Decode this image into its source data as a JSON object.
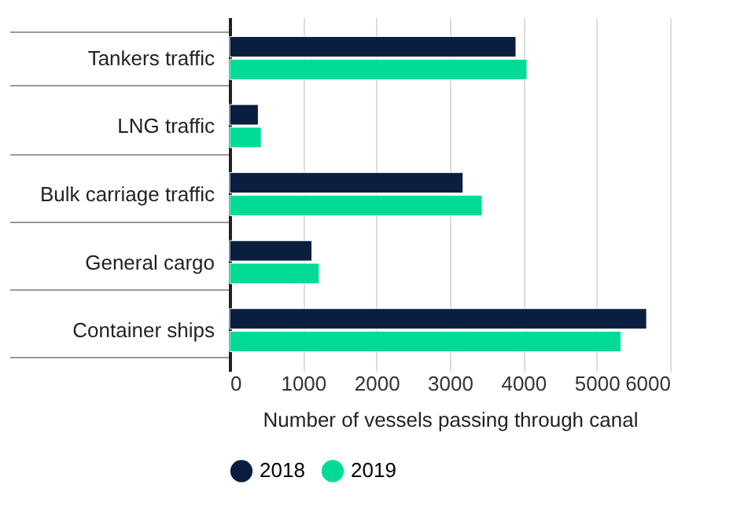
{
  "chart_data": {
    "type": "bar",
    "orientation": "horizontal",
    "categories": [
      "Tankers traffic",
      "LNG traffic",
      "Bulk carriage traffic",
      "General cargo",
      "Container ships"
    ],
    "series": [
      {
        "name": "2018",
        "color": "#0a1f3f",
        "values": [
          3900,
          390,
          3180,
          1120,
          5680
        ]
      },
      {
        "name": "2019",
        "color": "#00dc96",
        "values": [
          4050,
          430,
          3440,
          1220,
          5330
        ]
      }
    ],
    "xlabel": "Number of vessels passing through canal",
    "xlim": [
      0,
      6000
    ],
    "xticks": [
      0,
      1000,
      2000,
      3000,
      4000,
      5000,
      6000
    ],
    "grid": "x",
    "legend": "bottom"
  }
}
